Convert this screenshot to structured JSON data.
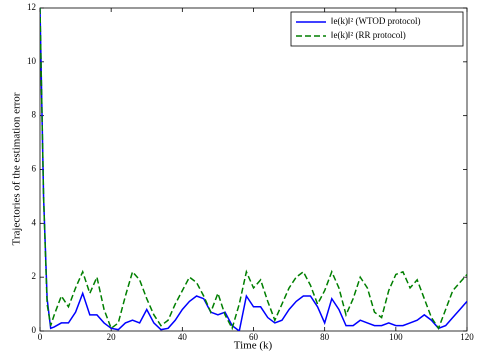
{
  "chart_data": {
    "type": "line",
    "xlabel": "Time (k)",
    "ylabel": "Trajectories of the estimation error",
    "x": [
      0,
      1,
      2,
      3,
      4,
      6,
      8,
      10,
      12,
      14,
      16,
      18,
      20,
      22,
      24,
      26,
      28,
      30,
      32,
      34,
      36,
      38,
      40,
      42,
      44,
      46,
      48,
      50,
      52,
      54,
      56,
      58,
      60,
      62,
      64,
      66,
      68,
      70,
      72,
      74,
      76,
      78,
      80,
      82,
      84,
      86,
      88,
      90,
      92,
      94,
      96,
      98,
      100,
      102,
      104,
      106,
      108,
      110,
      112,
      114,
      116,
      118,
      120
    ],
    "series": [
      {
        "name": "‖e(k)‖² (WTOD protocol)",
        "color": "#0000ff",
        "dash": false,
        "values": [
          12,
          5,
          1.2,
          0.1,
          0.15,
          0.3,
          0.3,
          0.7,
          1.4,
          0.6,
          0.6,
          0.3,
          0.1,
          0.05,
          0.3,
          0.4,
          0.3,
          0.8,
          0.3,
          0.05,
          0.1,
          0.4,
          0.8,
          1.1,
          1.3,
          1.2,
          0.7,
          0.6,
          0.7,
          0.2,
          0,
          1.3,
          0.9,
          0.9,
          0.5,
          0.3,
          0.4,
          0.8,
          1.1,
          1.3,
          1.3,
          0.9,
          0.3,
          1.2,
          0.8,
          0.2,
          0.2,
          0.4,
          0.3,
          0.2,
          0.2,
          0.3,
          0.2,
          0.2,
          0.3,
          0.4,
          0.6,
          0.4,
          0.1,
          0.2,
          0.5,
          0.8,
          1.1
        ]
      },
      {
        "name": "‖e(k)‖² (RR protocol)",
        "color": "#007f00",
        "dash": true,
        "values": [
          12,
          5,
          1,
          0.2,
          0.6,
          1.3,
          0.9,
          1.6,
          2.2,
          1.4,
          2.0,
          0.8,
          0.1,
          0.3,
          1.3,
          2.2,
          1.9,
          1.2,
          0.6,
          0.2,
          0.4,
          1.0,
          1.5,
          2.0,
          1.8,
          1.3,
          0.7,
          1.4,
          0.6,
          0.1,
          1.0,
          2.2,
          1.6,
          1.9,
          1.1,
          0.4,
          1.0,
          1.6,
          2.0,
          2.2,
          1.7,
          1.0,
          1.5,
          2.2,
          1.6,
          0.6,
          1.2,
          2.0,
          1.6,
          0.7,
          0.5,
          1.5,
          2.1,
          2.2,
          1.6,
          1.9,
          1.2,
          0.5,
          0.1,
          0.8,
          1.5,
          1.8,
          2.1
        ]
      }
    ],
    "xlim": [
      0,
      120
    ],
    "xticks": [
      0,
      20,
      40,
      60,
      80,
      100,
      120
    ],
    "ylim": [
      0,
      12
    ],
    "yticks": [
      0,
      2,
      4,
      6,
      8,
      10,
      12
    ],
    "legend": "upper right"
  }
}
